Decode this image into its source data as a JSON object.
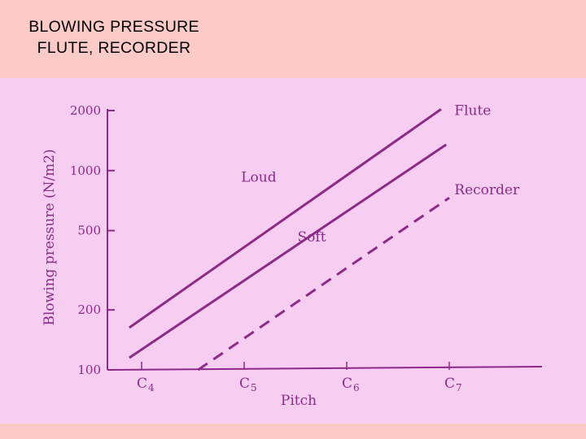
{
  "slide": {
    "title_line1": "BLOWING PRESSURE",
    "title_line2": "FLUTE, RECORDER"
  },
  "colors": {
    "header_bg": "#fccac7",
    "photo_bg": "#f8cdf2",
    "ink": "#8c2a88",
    "title_text": "#000000"
  },
  "chart_data": {
    "type": "line",
    "title": "",
    "xlabel": "Pitch",
    "ylabel": "Blowing pressure (N/m2)",
    "y_scale": "log",
    "ylim": [
      100,
      2000
    ],
    "x_ticks": [
      {
        "pos": 0,
        "label": "C4"
      },
      {
        "pos": 1,
        "label": "C5"
      },
      {
        "pos": 2,
        "label": "C6"
      },
      {
        "pos": 3,
        "label": "C7"
      }
    ],
    "y_ticks": [
      2000,
      1000,
      500,
      200,
      100
    ],
    "series": [
      {
        "name": "Loud",
        "style": "solid",
        "x": [
          -0.12,
          2.92
        ],
        "y": [
          163,
          2030
        ]
      },
      {
        "name": "Soft",
        "style": "solid",
        "x": [
          -0.12,
          2.97
        ],
        "y": [
          115,
          1350
        ]
      },
      {
        "name": "Recorder",
        "style": "dashed",
        "x": [
          0.55,
          3.0
        ],
        "y": [
          100,
          730
        ]
      }
    ],
    "annotations": [
      {
        "text": "Flute",
        "x": 3.05,
        "y": 1900
      },
      {
        "text": "Loud",
        "x": 0.97,
        "y": 880
      },
      {
        "text": "Soft",
        "x": 1.52,
        "y": 440
      },
      {
        "text": "Recorder",
        "x": 3.05,
        "y": 760
      }
    ],
    "grid": false,
    "legend": "none"
  }
}
